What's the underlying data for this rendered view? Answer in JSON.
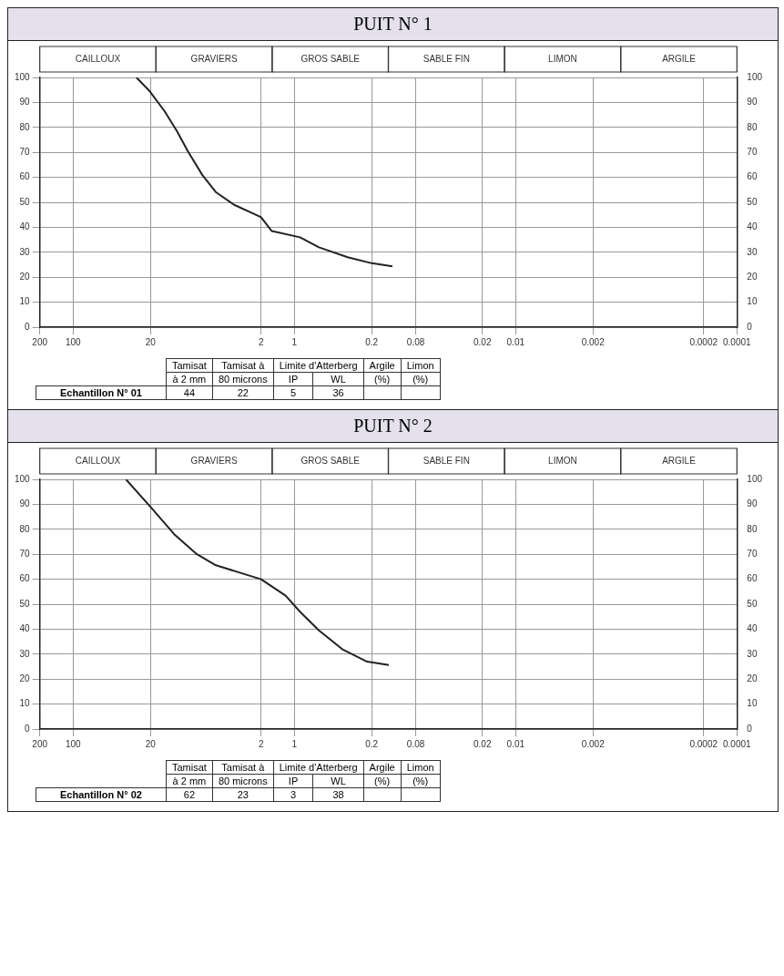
{
  "chart_data": [
    {
      "type": "line",
      "title": "PUIT N° 1",
      "series": [
        {
          "color": "#222222",
          "x": [
            26.8,
            20.3,
            14.9,
            11.5,
            9.2,
            6.8,
            5.1,
            3.5,
            2.35,
            2,
            1.6,
            0.89,
            0.6,
            0.33,
            0.2,
            0.13
          ],
          "values": [
            100,
            94.5,
            86.5,
            78.5,
            70.5,
            61,
            54,
            49,
            45.5,
            44,
            38.5,
            36,
            32,
            28,
            25.6,
            24.4
          ]
        }
      ],
      "xlim": [
        200,
        0.0001
      ],
      "xticks": [
        200,
        100,
        20,
        2,
        1,
        0.2,
        0.08,
        0.02,
        0.01,
        0.002,
        0.0002,
        0.0001
      ],
      "ylim": [
        0,
        100
      ],
      "yticks": [
        0,
        10,
        20,
        30,
        40,
        50,
        60,
        70,
        80,
        90,
        100
      ],
      "y2lim": [
        0,
        100
      ],
      "y2ticks": [
        0,
        10,
        20,
        30,
        40,
        50,
        60,
        70,
        80,
        90,
        100
      ],
      "log": "x",
      "grid": true,
      "legend": false,
      "marker": "none",
      "line_style": "solid",
      "annotations": [
        "CAILLOUX",
        "GRAVIERS",
        "GROS SABLE",
        "SABLE FIN",
        "LIMON",
        "ARGILE",
        "Tamisat",
        "à 2 mm",
        "Tamisat à",
        "80 microns",
        "Limite d'Atterberg",
        "IP",
        "WL",
        "Argile",
        "(%)",
        "Limon",
        "(%)",
        "Echantillon N° 01",
        "44",
        "22",
        "5",
        "36"
      ]
    },
    {
      "type": "line",
      "title": "PUIT N° 2",
      "series": [
        {
          "color": "#222222",
          "x": [
            33.3,
            20,
            12,
            7.6,
            5.2,
            2.8,
            2,
            1.2,
            0.89,
            0.6,
            0.37,
            0.22,
            0.14
          ],
          "values": [
            100,
            89,
            77.7,
            70,
            65.7,
            62,
            60,
            53.4,
            47,
            39.5,
            32,
            27,
            25.6
          ]
        }
      ],
      "xlim": [
        200,
        0.0001
      ],
      "xticks": [
        200,
        100,
        20,
        2,
        1,
        0.2,
        0.08,
        0.02,
        0.01,
        0.002,
        0.0002,
        0.0001
      ],
      "ylim": [
        0,
        100
      ],
      "yticks": [
        0,
        10,
        20,
        30,
        40,
        50,
        60,
        70,
        80,
        90,
        100
      ],
      "y2lim": [
        0,
        100
      ],
      "y2ticks": [
        0,
        10,
        20,
        30,
        40,
        50,
        60,
        70,
        80,
        90,
        100
      ],
      "log": "x",
      "grid": true,
      "legend": false,
      "marker": "none",
      "line_style": "solid",
      "annotations": [
        "CAILLOUX",
        "GRAVIERS",
        "GROS SABLE",
        "SABLE FIN",
        "LIMON",
        "ARGILE",
        "Tamisat",
        "à 2 mm",
        "Tamisat à",
        "80 microns",
        "Limite d'Atterberg",
        "IP",
        "WL",
        "Argile",
        "(%)",
        "Limon",
        "(%)",
        "Echantillon N° 02",
        "62",
        "23",
        "3",
        "38"
      ]
    }
  ]
}
